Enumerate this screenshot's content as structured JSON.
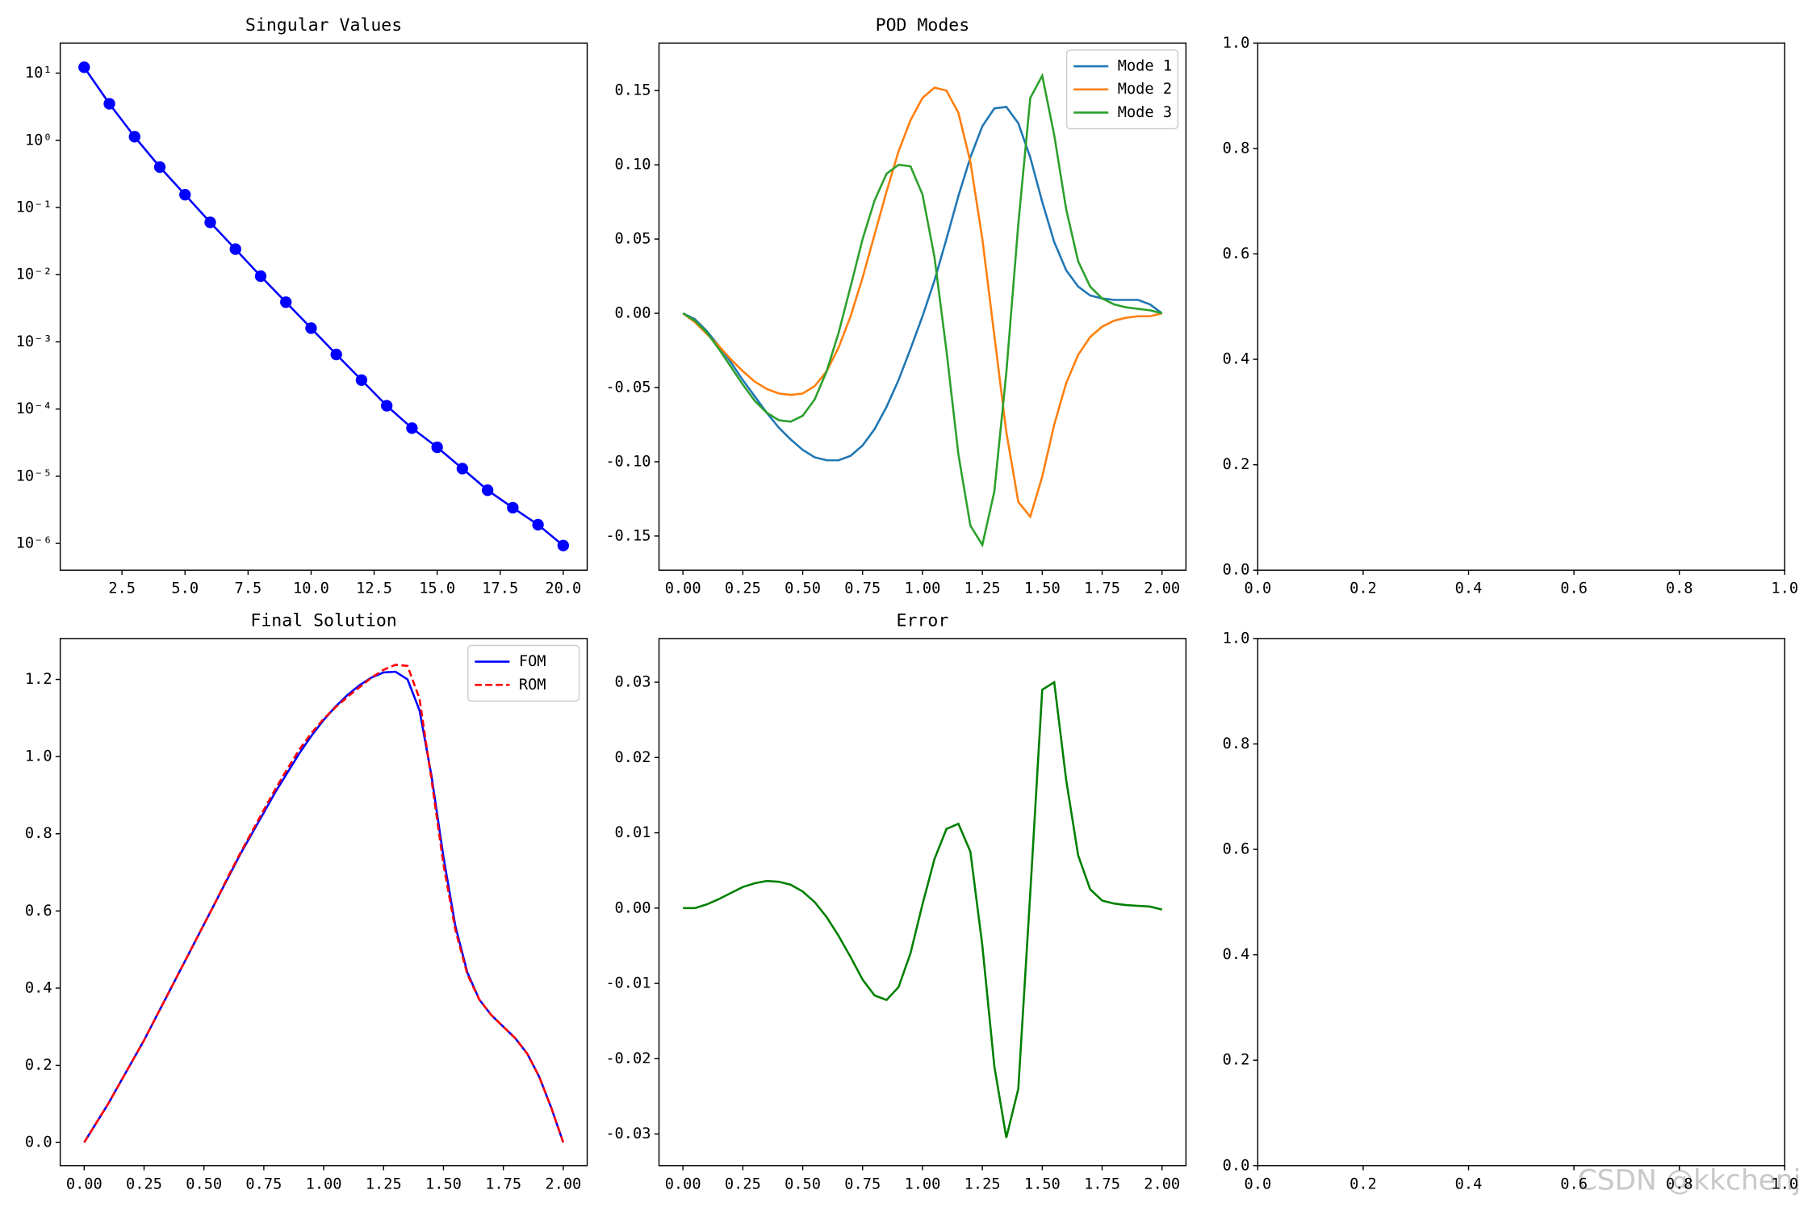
{
  "chart_data": [
    {
      "type": "line",
      "title": "Singular Values",
      "log_y": true,
      "marker": "o",
      "color": "#0000ff",
      "x": [
        1,
        2,
        3,
        4,
        5,
        6,
        7,
        8,
        9,
        10,
        11,
        12,
        13,
        14,
        15,
        16,
        17,
        18,
        19,
        20
      ],
      "values": [
        12.2,
        3.5,
        1.13,
        0.4,
        0.155,
        0.06,
        0.024,
        0.0095,
        0.0039,
        0.0016,
        0.00065,
        0.00027,
        0.000112,
        5.2e-05,
        2.7e-05,
        1.3e-05,
        6.2e-06,
        3.4e-06,
        1.9e-06,
        9.3e-07
      ],
      "xlim": [
        0.05,
        20.95
      ],
      "ylim": [
        4e-07,
        28
      ],
      "xticks": [
        2.5,
        {
          "value": 5,
          "label": "5.0"
        },
        7.5,
        {
          "value": 10,
          "label": "10.0"
        },
        12.5,
        {
          "value": 15,
          "label": "15.0"
        },
        17.5,
        {
          "value": 20,
          "label": "20.0"
        }
      ],
      "yticks": [
        {
          "value": 1e-06,
          "label": "10⁻⁶"
        },
        {
          "value": 1e-05,
          "label": "10⁻⁵"
        },
        {
          "value": 0.0001,
          "label": "10⁻⁴"
        },
        {
          "value": 0.001,
          "label": "10⁻³"
        },
        {
          "value": 0.01,
          "label": "10⁻²"
        },
        {
          "value": 0.1,
          "label": "10⁻¹"
        },
        {
          "value": 1,
          "label": "10⁰"
        },
        {
          "value": 10,
          "label": "10¹"
        }
      ]
    },
    {
      "type": "line",
      "title": "POD Modes",
      "legend": "upper right",
      "x": [
        0,
        0.05,
        0.1,
        0.15,
        0.2,
        0.25,
        0.3,
        0.35,
        0.4,
        0.45,
        0.5,
        0.55,
        0.6,
        0.65,
        0.7,
        0.75,
        0.8,
        0.85,
        0.9,
        0.95,
        1.0,
        1.05,
        1.1,
        1.15,
        1.2,
        1.25,
        1.3,
        1.35,
        1.4,
        1.45,
        1.5,
        1.55,
        1.6,
        1.65,
        1.7,
        1.75,
        1.8,
        1.85,
        1.9,
        1.95,
        2.0
      ],
      "series": [
        {
          "name": "Mode 1",
          "color": "#1f77b4",
          "values": [
            0,
            -0.004,
            -0.012,
            -0.022,
            -0.033,
            -0.045,
            -0.056,
            -0.067,
            -0.077,
            -0.085,
            -0.092,
            -0.097,
            -0.099,
            -0.099,
            -0.096,
            -0.089,
            -0.078,
            -0.063,
            -0.045,
            -0.024,
            -0.002,
            0.022,
            0.05,
            0.079,
            0.105,
            0.126,
            0.138,
            0.139,
            0.128,
            0.105,
            0.075,
            0.048,
            0.029,
            0.018,
            0.012,
            0.01,
            0.009,
            0.009,
            0.009,
            0.006,
            0
          ]
        },
        {
          "name": "Mode 2",
          "color": "#ff7f0e",
          "values": [
            0,
            -0.006,
            -0.014,
            -0.022,
            -0.031,
            -0.039,
            -0.046,
            -0.051,
            -0.054,
            -0.055,
            -0.054,
            -0.049,
            -0.039,
            -0.023,
            -0.002,
            0.024,
            0.053,
            0.082,
            0.109,
            0.13,
            0.145,
            0.152,
            0.15,
            0.135,
            0.102,
            0.05,
            -0.015,
            -0.08,
            -0.127,
            -0.137,
            -0.11,
            -0.075,
            -0.047,
            -0.028,
            -0.016,
            -0.009,
            -0.005,
            -0.003,
            -0.002,
            -0.002,
            0
          ]
        },
        {
          "name": "Mode 3",
          "color": "#2ca02c",
          "values": [
            0,
            -0.005,
            -0.013,
            -0.024,
            -0.036,
            -0.048,
            -0.059,
            -0.067,
            -0.072,
            -0.073,
            -0.069,
            -0.058,
            -0.039,
            -0.013,
            0.018,
            0.05,
            0.076,
            0.094,
            0.1,
            0.099,
            0.08,
            0.038,
            -0.025,
            -0.095,
            -0.143,
            -0.156,
            -0.12,
            -0.04,
            0.06,
            0.145,
            0.16,
            0.12,
            0.07,
            0.035,
            0.018,
            0.01,
            0.006,
            0.004,
            0.003,
            0.002,
            0
          ]
        }
      ],
      "xlim": [
        -0.1,
        2.1
      ],
      "ylim": [
        -0.173,
        0.182
      ],
      "xticks": [
        {
          "value": 0,
          "label": "0.00"
        },
        0.25,
        {
          "value": 0.5,
          "label": "0.50"
        },
        0.75,
        {
          "value": 1,
          "label": "1.00"
        },
        1.25,
        {
          "value": 1.5,
          "label": "1.50"
        },
        1.75,
        {
          "value": 2,
          "label": "2.00"
        }
      ],
      "yticks": [
        -0.15,
        {
          "value": -0.1,
          "label": "-0.10"
        },
        -0.05,
        {
          "value": 0,
          "label": "0.00"
        },
        0.05,
        {
          "value": 0.1,
          "label": "0.10"
        },
        0.15
      ]
    },
    {
      "type": "line",
      "series": [],
      "xlim": [
        0,
        1
      ],
      "ylim": [
        0,
        1
      ],
      "xticks": [
        {
          "value": 0,
          "label": "0.0"
        },
        0.2,
        0.4,
        0.6,
        0.8,
        {
          "value": 1,
          "label": "1.0"
        }
      ],
      "yticks": [
        {
          "value": 0,
          "label": "0.0"
        },
        0.2,
        0.4,
        0.6,
        0.8,
        {
          "value": 1,
          "label": "1.0"
        }
      ]
    },
    {
      "type": "line",
      "title": "Final Solution",
      "legend": "upper right",
      "x": [
        0,
        0.05,
        0.1,
        0.15,
        0.2,
        0.25,
        0.3,
        0.35,
        0.4,
        0.45,
        0.5,
        0.55,
        0.6,
        0.65,
        0.7,
        0.75,
        0.8,
        0.85,
        0.9,
        0.95,
        1.0,
        1.05,
        1.1,
        1.15,
        1.2,
        1.25,
        1.3,
        1.35,
        1.4,
        1.45,
        1.5,
        1.55,
        1.6,
        1.65,
        1.7,
        1.75,
        1.8,
        1.85,
        1.9,
        1.95,
        2.0
      ],
      "series": [
        {
          "name": "FOM",
          "color": "#0000ff",
          "values": [
            0,
            0.05,
            0.1,
            0.155,
            0.21,
            0.265,
            0.325,
            0.385,
            0.445,
            0.505,
            0.565,
            0.625,
            0.685,
            0.745,
            0.8,
            0.855,
            0.91,
            0.96,
            1.01,
            1.055,
            1.095,
            1.13,
            1.16,
            1.185,
            1.205,
            1.218,
            1.22,
            1.2,
            1.12,
            0.95,
            0.74,
            0.56,
            0.44,
            0.37,
            0.33,
            0.3,
            0.27,
            0.23,
            0.17,
            0.09,
            0
          ]
        },
        {
          "name": "ROM",
          "color": "#ff0000",
          "linestyle": "dashed",
          "values": [
            0,
            0.05,
            0.1,
            0.155,
            0.21,
            0.265,
            0.325,
            0.385,
            0.445,
            0.505,
            0.565,
            0.625,
            0.688,
            0.748,
            0.805,
            0.862,
            0.918,
            0.97,
            1.02,
            1.062,
            1.098,
            1.128,
            1.155,
            1.18,
            1.205,
            1.225,
            1.238,
            1.235,
            1.15,
            0.94,
            0.72,
            0.55,
            0.435,
            0.37,
            0.33,
            0.3,
            0.27,
            0.23,
            0.17,
            0.09,
            0
          ]
        }
      ],
      "xlim": [
        -0.1,
        2.1
      ],
      "ylim": [
        -0.06,
        1.306
      ],
      "xticks": [
        {
          "value": 0,
          "label": "0.00"
        },
        0.25,
        {
          "value": 0.5,
          "label": "0.50"
        },
        0.75,
        {
          "value": 1,
          "label": "1.00"
        },
        1.25,
        {
          "value": 1.5,
          "label": "1.50"
        },
        1.75,
        {
          "value": 2,
          "label": "2.00"
        }
      ],
      "yticks": [
        {
          "value": 0,
          "label": "0.0"
        },
        0.2,
        0.4,
        0.6,
        0.8,
        {
          "value": 1,
          "label": "1.0"
        },
        1.2
      ]
    },
    {
      "type": "line",
      "title": "Error",
      "color": "#008000",
      "x": [
        0,
        0.05,
        0.1,
        0.15,
        0.2,
        0.25,
        0.3,
        0.35,
        0.4,
        0.45,
        0.5,
        0.55,
        0.6,
        0.65,
        0.7,
        0.75,
        0.8,
        0.85,
        0.9,
        0.95,
        1.0,
        1.05,
        1.1,
        1.15,
        1.2,
        1.25,
        1.3,
        1.35,
        1.4,
        1.45,
        1.5,
        1.55,
        1.6,
        1.65,
        1.7,
        1.75,
        1.8,
        1.85,
        1.9,
        1.95,
        2.0
      ],
      "values": [
        0,
        0,
        0.0005,
        0.0012,
        0.002,
        0.0028,
        0.0033,
        0.0036,
        0.0035,
        0.0031,
        0.0022,
        0.0008,
        -0.0012,
        -0.0037,
        -0.0065,
        -0.0095,
        -0.0116,
        -0.0122,
        -0.0105,
        -0.006,
        0.0005,
        0.0065,
        0.0105,
        0.0112,
        0.0075,
        -0.005,
        -0.021,
        -0.0305,
        -0.024,
        0.002,
        0.029,
        0.03,
        0.017,
        0.007,
        0.0025,
        0.001,
        0.0006,
        0.0004,
        0.0003,
        0.0002,
        -0.0002
      ],
      "xlim": [
        -0.1,
        2.1
      ],
      "ylim": [
        -0.0342,
        0.0358
      ],
      "xticks": [
        {
          "value": 0,
          "label": "0.00"
        },
        0.25,
        {
          "value": 0.5,
          "label": "0.50"
        },
        0.75,
        {
          "value": 1,
          "label": "1.00"
        },
        1.25,
        {
          "value": 1.5,
          "label": "1.50"
        },
        1.75,
        {
          "value": 2,
          "label": "2.00"
        }
      ],
      "yticks": [
        -0.03,
        -0.02,
        -0.01,
        {
          "value": 0,
          "label": "0.00"
        },
        0.01,
        0.02,
        0.03
      ]
    },
    {
      "type": "line",
      "series": [],
      "xlim": [
        0,
        1
      ],
      "ylim": [
        0,
        1
      ],
      "xticks": [
        {
          "value": 0,
          "label": "0.0"
        },
        0.2,
        0.4,
        0.6,
        0.8,
        {
          "value": 1,
          "label": "1.0"
        }
      ],
      "yticks": [
        {
          "value": 0,
          "label": "0.0"
        },
        0.2,
        0.4,
        0.6,
        0.8,
        {
          "value": 1,
          "label": "1.0"
        }
      ]
    }
  ],
  "watermark": "CSDN @kkchenj"
}
